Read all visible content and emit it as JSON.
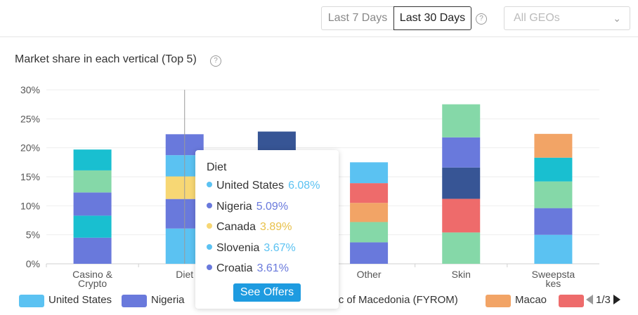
{
  "toolbar": {
    "last7_label": "Last 7 Days",
    "last30_label": "Last 30 Days",
    "geo_placeholder": "All GEOs"
  },
  "chart_title": "Market share in each vertical  (Top 5)",
  "chart_data": {
    "type": "bar",
    "stacked": true,
    "title": "Market share in each vertical  (Top 5)",
    "categories": [
      "Casino & Crypto",
      "Diet",
      "",
      "Other",
      "Skin",
      "Sweepstakes"
    ],
    "category_labels": [
      [
        "Casino &",
        "Crypto"
      ],
      [
        "Diet"
      ],
      [
        ""
      ],
      [
        "Other"
      ],
      [
        "Skin"
      ],
      [
        "Sweepsta",
        "kes"
      ]
    ],
    "ylim": [
      0,
      30
    ],
    "yticks": [
      "0%",
      "5%",
      "10%",
      "15%",
      "20%",
      "25%",
      "30%"
    ],
    "ytick_values": [
      0,
      5,
      10,
      15,
      20,
      25,
      30
    ],
    "grid": true,
    "stacks": [
      [
        {
          "v": 4.5,
          "c": "#6979dc"
        },
        {
          "v": 3.8,
          "c": "#19bfd0"
        },
        {
          "v": 4.0,
          "c": "#6979dc"
        },
        {
          "v": 3.8,
          "c": "#85d8a8"
        },
        {
          "v": 3.6,
          "c": "#19bfd0"
        }
      ],
      [
        {
          "v": 6.08,
          "c": "#5bc2f2"
        },
        {
          "v": 5.09,
          "c": "#6979dc"
        },
        {
          "v": 3.89,
          "c": "#f7d774"
        },
        {
          "v": 3.67,
          "c": "#5bc2f2"
        },
        {
          "v": 3.61,
          "c": "#6979dc"
        }
      ],
      [
        {
          "v": 22.8,
          "c": "#375595"
        }
      ],
      [
        {
          "v": 3.7,
          "c": "#6979dc"
        },
        {
          "v": 3.5,
          "c": "#85d8a8"
        },
        {
          "v": 3.3,
          "c": "#f2a466"
        },
        {
          "v": 3.4,
          "c": "#ee6b6b"
        },
        {
          "v": 3.6,
          "c": "#5bc2f2"
        }
      ],
      [
        {
          "v": 5.4,
          "c": "#85d8a8"
        },
        {
          "v": 5.8,
          "c": "#ee6b6b"
        },
        {
          "v": 5.4,
          "c": "#375595"
        },
        {
          "v": 5.2,
          "c": "#6979dc"
        },
        {
          "v": 5.7,
          "c": "#85d8a8"
        }
      ],
      [
        {
          "v": 5.0,
          "c": "#5bc2f2"
        },
        {
          "v": 4.6,
          "c": "#6979dc"
        },
        {
          "v": 4.6,
          "c": "#85d8a8"
        },
        {
          "v": 4.1,
          "c": "#19bfd0"
        },
        {
          "v": 4.1,
          "c": "#f2a466"
        }
      ]
    ],
    "hover_index": 1,
    "legend": [
      {
        "name": "United States",
        "color": "#5bc2f2"
      },
      {
        "name": "Nigeria",
        "color": "#6979dc"
      },
      {
        "name": "public of Macedonia (FYROM)",
        "color": ""
      },
      {
        "name": "Macao",
        "color": "#f2a466"
      },
      {
        "name": "",
        "color": "#ee6b6b"
      }
    ]
  },
  "tooltip": {
    "title": "Diet",
    "rows": [
      {
        "name": "United States",
        "value": "6.08%",
        "dot": "#5bc2f2",
        "color": "#5bc2f2"
      },
      {
        "name": "Nigeria",
        "value": "5.09%",
        "dot": "#6979dc",
        "color": "#6979dc"
      },
      {
        "name": "Canada",
        "value": "3.89%",
        "dot": "#f7d774",
        "color": "#e8c14a"
      },
      {
        "name": "Slovenia",
        "value": "3.67%",
        "dot": "#5bc2f2",
        "color": "#5bc2f2"
      },
      {
        "name": "Croatia",
        "value": "3.61%",
        "dot": "#6979dc",
        "color": "#6979dc"
      }
    ],
    "button_label": "See Offers"
  },
  "pager": {
    "text": "1/3"
  }
}
